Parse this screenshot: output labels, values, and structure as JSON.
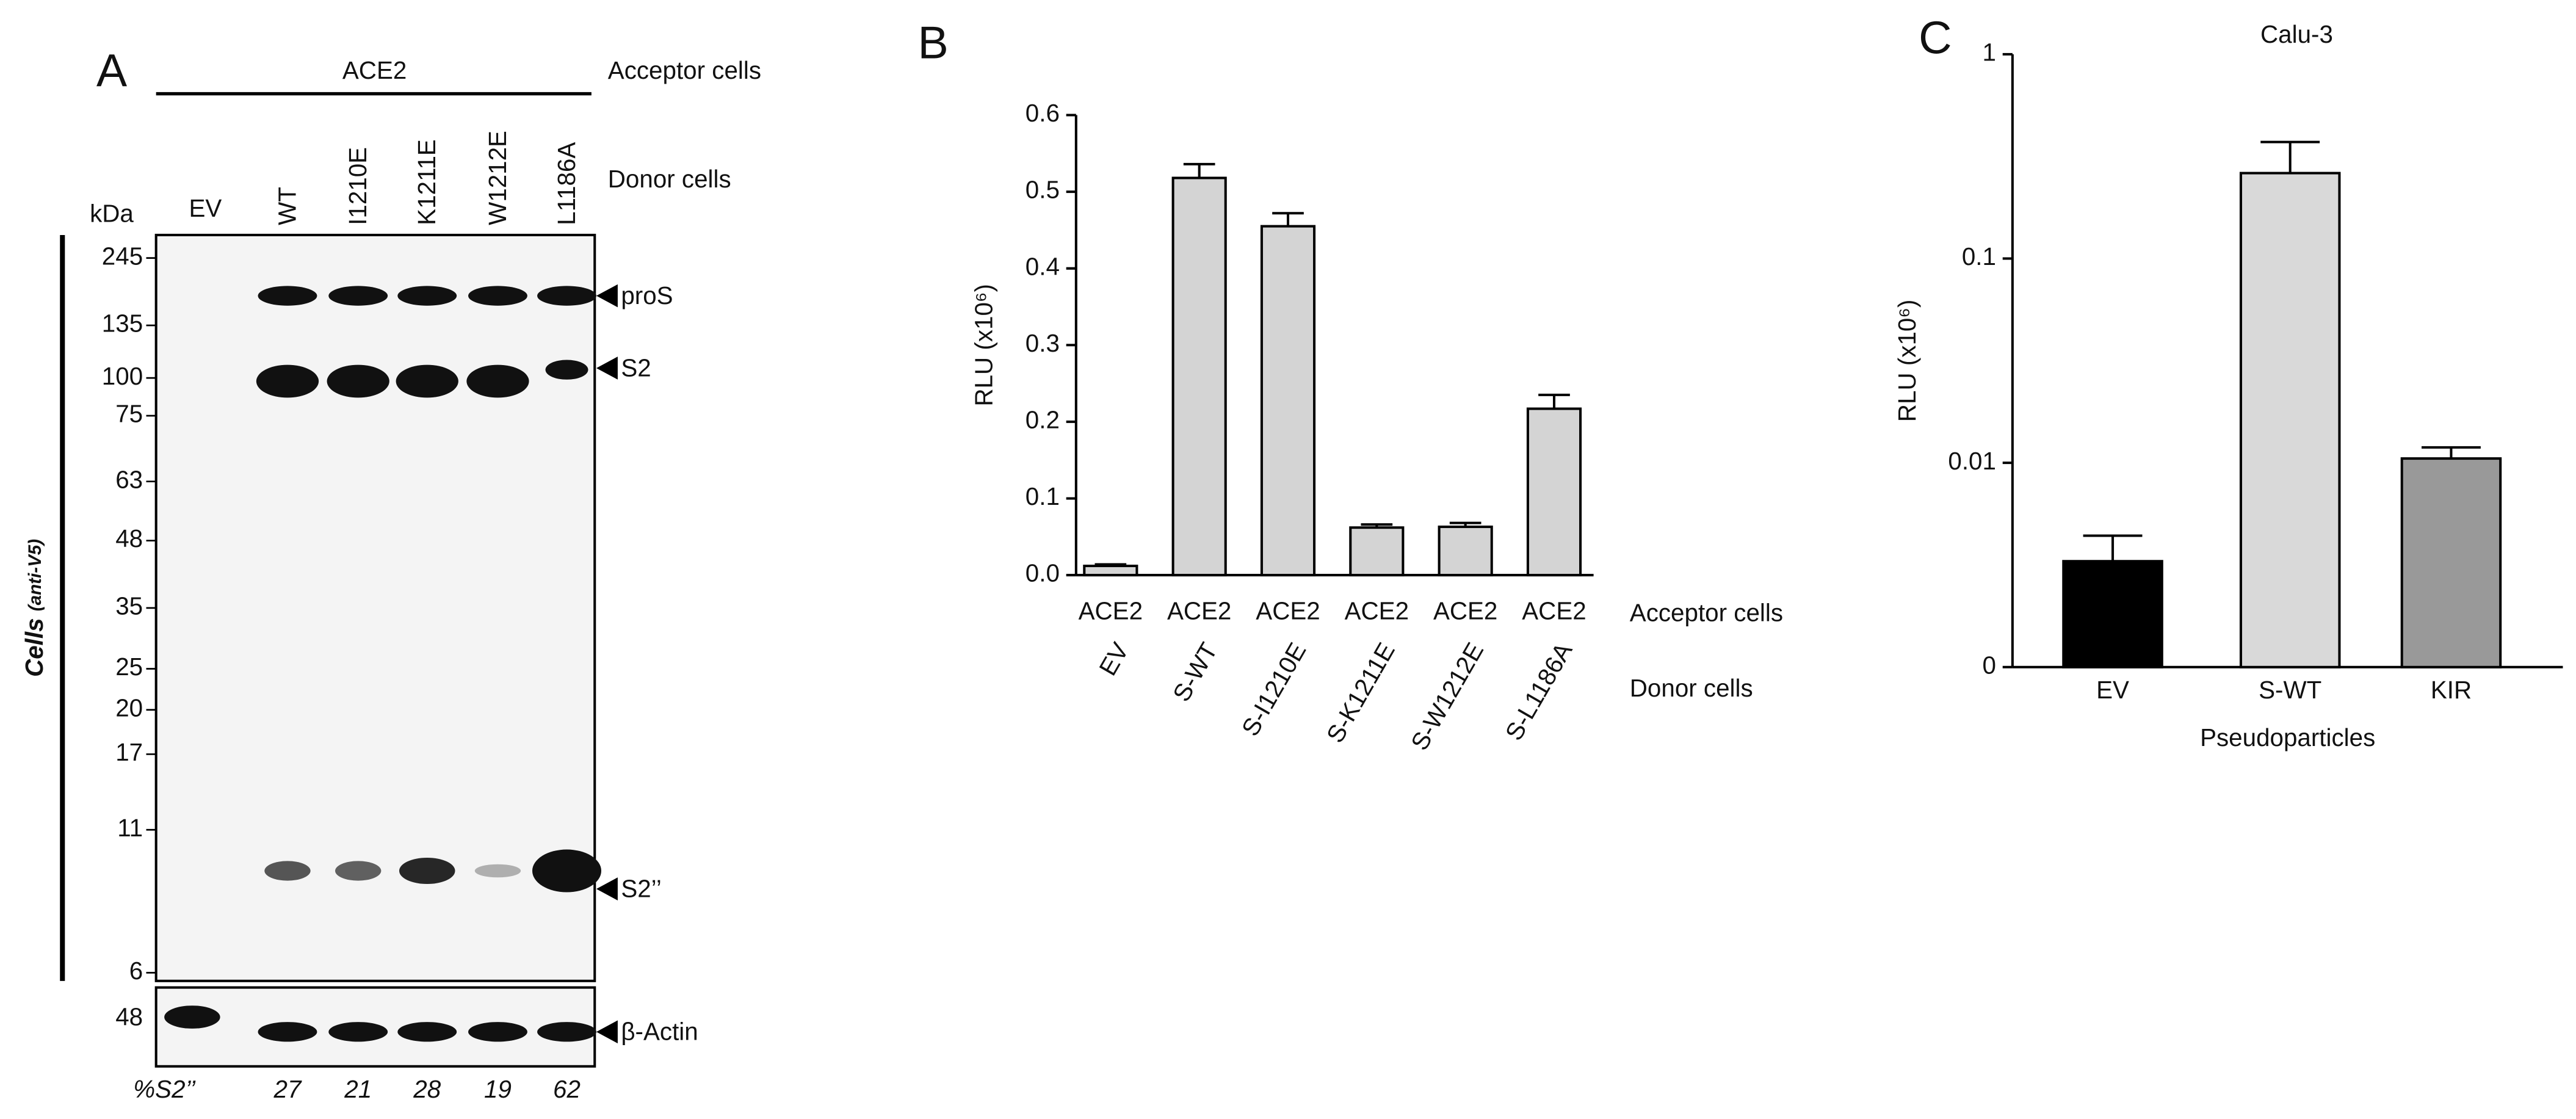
{
  "blot": {
    "panel": "A",
    "acceptor": "ACE2",
    "acceptor_label": "Acceptor cells",
    "donor_label": "Donor cells",
    "lanes": [
      "EV",
      "WT",
      "I1210E",
      "K1211E",
      "W1212E",
      "L1186A"
    ],
    "kda": "kDa",
    "markers": [
      "245",
      "135",
      "100",
      "75",
      "63",
      "48",
      "35",
      "25",
      "20",
      "17",
      "11",
      "6"
    ],
    "bands": [
      "proS",
      "S2",
      "S2’’"
    ],
    "side_label": "Cells",
    "side_label_sub": "(anti-V5)",
    "actin_marker": "48",
    "actin_label": "β-Actin",
    "percent_label": "%S2’’",
    "percents": [
      "27",
      "21",
      "28",
      "19",
      "62"
    ]
  },
  "chart_data": [
    {
      "type": "bar",
      "panel": "B",
      "ylabel": "RLU (x10⁶)",
      "categories": [
        "ACE2",
        "ACE2",
        "ACE2",
        "ACE2",
        "ACE2",
        "ACE2"
      ],
      "subcategories": [
        "EV",
        "S-WT",
        "S-I1210E",
        "S-K1211E",
        "S-W1212E",
        "S-L1186A"
      ],
      "category_label": "Acceptor cells",
      "subcategory_label": "Donor cells",
      "values": [
        0.012,
        0.518,
        0.455,
        0.062,
        0.063,
        0.217
      ],
      "errors": [
        0.002,
        0.018,
        0.017,
        0.004,
        0.005,
        0.018
      ],
      "colors": [
        "#d4d4d4",
        "#d4d4d4",
        "#d4d4d4",
        "#d4d4d4",
        "#d4d4d4",
        "#d4d4d4"
      ],
      "ylim": [
        0,
        0.6
      ],
      "yticks": [
        {
          "value": 0,
          "label": "0.0"
        },
        0.1,
        0.2,
        0.3,
        0.4,
        0.5,
        0.6
      ],
      "log": false
    },
    {
      "type": "bar",
      "panel": "C",
      "title": "Calu-3",
      "ylabel": "RLU (x10⁶)",
      "xlabel": "Pseudoparticles",
      "categories": [
        "EV",
        "S-WT",
        "KIR"
      ],
      "values": [
        0.0033,
        0.262,
        0.0105
      ],
      "errors": [
        0.0011,
        0.11,
        0.0014
      ],
      "colors": [
        "#000000",
        "#d9d9d9",
        "#999999"
      ],
      "ylim": [
        0.001,
        1
      ],
      "yticks": [
        {
          "value": 0.001,
          "label": "0"
        },
        0.01,
        0.1,
        1
      ],
      "log": true
    }
  ]
}
